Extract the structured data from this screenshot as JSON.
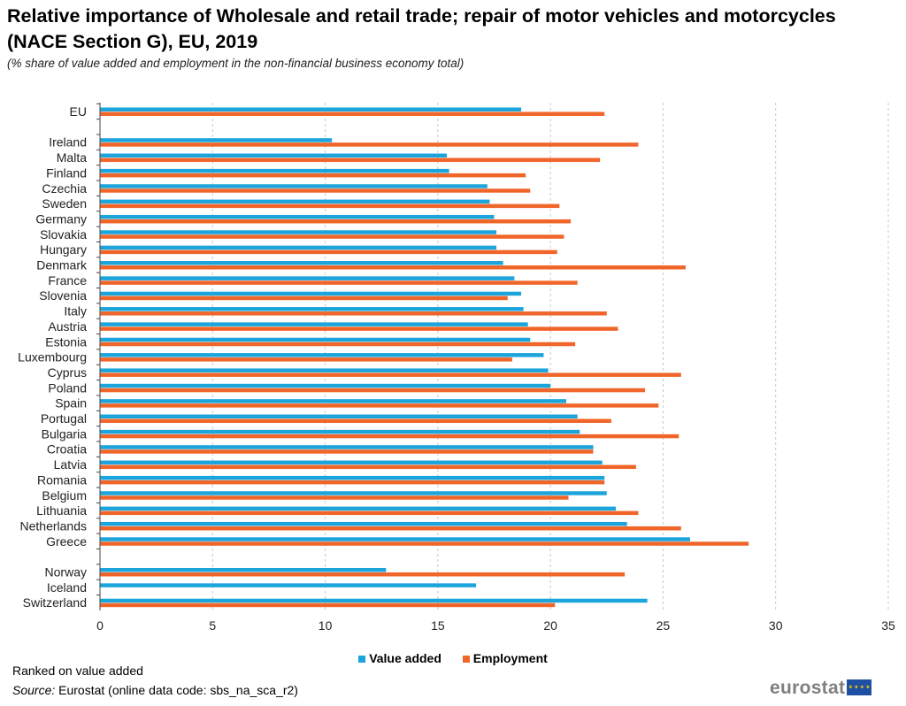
{
  "header": {
    "title": "Relative importance of Wholesale and retail trade; repair of motor vehicles and motorcycles (NACE Section G), EU, 2019",
    "subtitle": "(% share of value added and employment in the non-financial business economy total)"
  },
  "footer": {
    "note": "Ranked on value added",
    "source_label": "Source:",
    "source_text": " Eurostat (online data code: sbs_na_sca_r2)",
    "logo": "eurostat"
  },
  "colors": {
    "value_added": "#1ba5dc",
    "employment": "#f0662a",
    "grid": "#c8c8c8",
    "axis": "#444444"
  },
  "chart_data": {
    "type": "bar",
    "orientation": "horizontal",
    "title": "Relative importance of Wholesale and retail trade; repair of motor vehicles and motorcycles (NACE Section G), EU, 2019",
    "subtitle": "(% share of value added and employment in the non-financial business economy total)",
    "xlim": [
      0,
      35
    ],
    "xticks": [
      0,
      5,
      10,
      15,
      20,
      25,
      30,
      35
    ],
    "grid": "vertical dashed",
    "legend_position": "bottom",
    "categories": [
      "EU",
      "",
      "Ireland",
      "Malta",
      "Finland",
      "Czechia",
      "Sweden",
      "Germany",
      "Slovakia",
      "Hungary",
      "Denmark",
      "France",
      "Slovenia",
      "Italy",
      "Austria",
      "Estonia",
      "Luxembourg",
      "Cyprus",
      "Poland",
      "Spain",
      "Portugal",
      "Bulgaria",
      "Croatia",
      "Latvia",
      "Romania",
      "Belgium",
      "Lithuania",
      "Netherlands",
      "Greece",
      "",
      "Norway",
      "Iceland",
      "Switzerland"
    ],
    "series": [
      {
        "name": "Value added",
        "values": [
          18.7,
          null,
          10.3,
          15.4,
          15.5,
          17.2,
          17.3,
          17.5,
          17.6,
          17.6,
          17.9,
          18.4,
          18.7,
          18.8,
          19.0,
          19.1,
          19.7,
          19.9,
          20.0,
          20.7,
          21.2,
          21.3,
          21.9,
          22.3,
          22.4,
          22.5,
          22.9,
          23.4,
          26.2,
          null,
          12.7,
          16.7,
          24.3
        ]
      },
      {
        "name": "Employment",
        "values": [
          22.4,
          null,
          23.9,
          22.2,
          18.9,
          19.1,
          20.4,
          20.9,
          20.6,
          20.3,
          26.0,
          21.2,
          18.1,
          22.5,
          23.0,
          21.1,
          18.3,
          25.8,
          24.2,
          24.8,
          22.7,
          25.7,
          21.9,
          23.8,
          22.4,
          20.8,
          23.9,
          25.8,
          28.8,
          null,
          23.3,
          null,
          20.2
        ]
      }
    ]
  }
}
